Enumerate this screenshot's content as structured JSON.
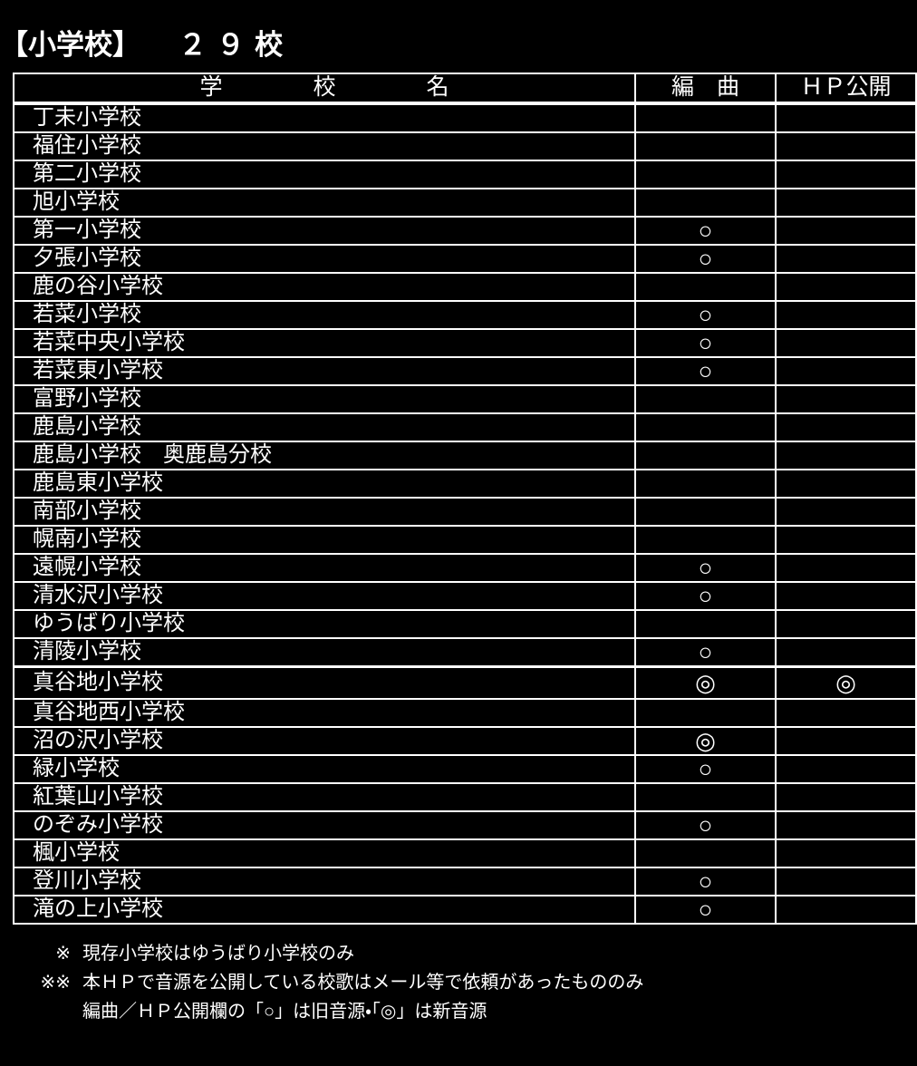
{
  "page": {
    "background_color": "#000000",
    "text_color": "#ffffff"
  },
  "title": {
    "category": "【小学校】",
    "count": "２９校"
  },
  "table": {
    "headers": {
      "school": "学　　　　校　　　　名",
      "arrange": "編　曲",
      "hp": "ＨＰ公開"
    },
    "marks_legend": {
      "old_source": "○",
      "new_source": "◎"
    },
    "rows": [
      {
        "name": "丁未小学校",
        "arrange": "",
        "hp": ""
      },
      {
        "name": "福住小学校",
        "arrange": "",
        "hp": ""
      },
      {
        "name": "第二小学校",
        "arrange": "",
        "hp": ""
      },
      {
        "name": "旭小学校",
        "arrange": "",
        "hp": ""
      },
      {
        "name": "第一小学校",
        "arrange": "○",
        "hp": ""
      },
      {
        "name": "夕張小学校",
        "arrange": "○",
        "hp": ""
      },
      {
        "name": "鹿の谷小学校",
        "arrange": "",
        "hp": ""
      },
      {
        "name": "若菜小学校",
        "arrange": "○",
        "hp": ""
      },
      {
        "name": "若菜中央小学校",
        "arrange": "○",
        "hp": ""
      },
      {
        "name": "若菜東小学校",
        "arrange": "○",
        "hp": ""
      },
      {
        "name": "富野小学校",
        "arrange": "",
        "hp": ""
      },
      {
        "name": "鹿島小学校",
        "arrange": "",
        "hp": ""
      },
      {
        "name": "鹿島小学校　奥鹿島分校",
        "arrange": "",
        "hp": ""
      },
      {
        "name": "鹿島東小学校",
        "arrange": "",
        "hp": ""
      },
      {
        "name": "南部小学校",
        "arrange": "",
        "hp": ""
      },
      {
        "name": "幌南小学校",
        "arrange": "",
        "hp": ""
      },
      {
        "name": "遠幌小学校",
        "arrange": "○",
        "hp": ""
      },
      {
        "name": "清水沢小学校",
        "arrange": "○",
        "hp": ""
      },
      {
        "name": "ゆうばり小学校",
        "arrange": "",
        "hp": ""
      },
      {
        "name": "清陵小学校",
        "arrange": "○",
        "hp": ""
      },
      {
        "name": "真谷地小学校",
        "arrange": "◎",
        "hp": "◎"
      },
      {
        "name": "真谷地西小学校",
        "arrange": "",
        "hp": ""
      },
      {
        "name": "沼の沢小学校",
        "arrange": "◎",
        "hp": ""
      },
      {
        "name": "緑小学校",
        "arrange": "○",
        "hp": ""
      },
      {
        "name": "紅葉山小学校",
        "arrange": "",
        "hp": ""
      },
      {
        "name": "のぞみ小学校",
        "arrange": "○",
        "hp": ""
      },
      {
        "name": "楓小学校",
        "arrange": "",
        "hp": ""
      },
      {
        "name": "登川小学校",
        "arrange": "○",
        "hp": ""
      },
      {
        "name": "滝の上小学校",
        "arrange": "○",
        "hp": ""
      }
    ]
  },
  "footnotes": [
    {
      "marker": "※",
      "text": "現存小学校はゆうばり小学校のみ"
    },
    {
      "marker": "※※",
      "text": "本ＨＰで音源を公開している校歌はメール等で依頼があったもののみ"
    },
    {
      "marker": "",
      "text": "編曲／ＨＰ公開欄の「○」は旧音源・「◎」は新音源"
    }
  ]
}
